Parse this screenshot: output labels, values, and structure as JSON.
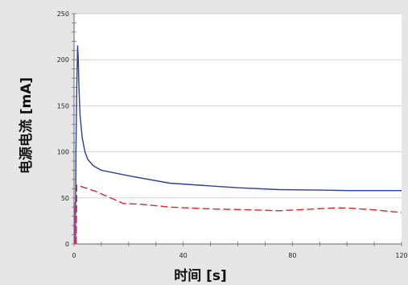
{
  "chart_data": {
    "type": "line",
    "xlabel": "时间 [s]",
    "ylabel": "电源电流 [mA]",
    "xlim": [
      0,
      120
    ],
    "ylim": [
      0,
      250
    ],
    "x_ticks": [
      0,
      40,
      80,
      120
    ],
    "y_ticks": [
      0,
      50,
      100,
      150,
      200,
      250
    ],
    "grid": true,
    "colors": {
      "blue": "#2b3f9e",
      "red": "#e0262b",
      "magenta": "#b03aa0",
      "grid": "#d2d2d2",
      "plot_bg": "#ffffff"
    },
    "series": [
      {
        "color": "#2b3f9e",
        "style": "solid",
        "points": [
          [
            0.5,
            0
          ],
          [
            0.7,
            100
          ],
          [
            1.0,
            170
          ],
          [
            1.3,
            215
          ],
          [
            1.5,
            205
          ],
          [
            1.8,
            170
          ],
          [
            2.2,
            140
          ],
          [
            3,
            115
          ],
          [
            4,
            100
          ],
          [
            5,
            92
          ],
          [
            7,
            85
          ],
          [
            10,
            80
          ],
          [
            20,
            74
          ],
          [
            35,
            66
          ],
          [
            50,
            63
          ],
          [
            60,
            61
          ],
          [
            75,
            59
          ],
          [
            90,
            58.5
          ],
          [
            100,
            58
          ],
          [
            120,
            58
          ]
        ]
      },
      {
        "color": "#e0262b",
        "style": "dashed",
        "points": [
          [
            0.8,
            0
          ],
          [
            1,
            64
          ],
          [
            3,
            62
          ],
          [
            8,
            57
          ],
          [
            15,
            48
          ],
          [
            18,
            44
          ],
          [
            25,
            43
          ],
          [
            35,
            40
          ],
          [
            50,
            38
          ],
          [
            65,
            37
          ],
          [
            75,
            36
          ],
          [
            85,
            37.5
          ],
          [
            95,
            39
          ],
          [
            100,
            39
          ],
          [
            110,
            37
          ],
          [
            120,
            34
          ]
        ]
      },
      {
        "color": "#b03aa0",
        "style": "solid",
        "points": [
          [
            0.3,
            0
          ],
          [
            0.3,
            25
          ],
          [
            0.4,
            45
          ],
          [
            0.5,
            25
          ],
          [
            0.6,
            5
          ]
        ]
      }
    ]
  }
}
